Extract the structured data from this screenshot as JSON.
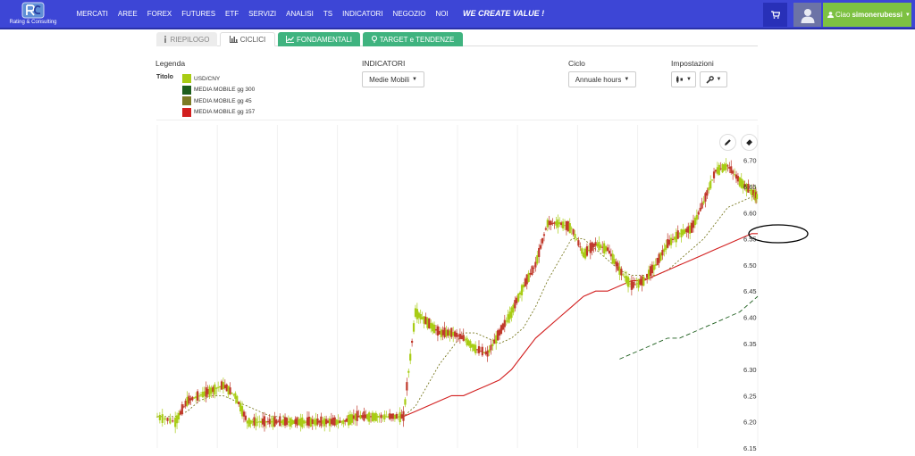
{
  "brand": {
    "name": "Rating & Consulting"
  },
  "nav": {
    "items": [
      "MERCATI",
      "AREE",
      "FOREX",
      "FUTURES",
      "ETF",
      "SERVIZI",
      "ANALISI",
      "TS",
      "INDICATORI",
      "NEGOZIO",
      "NOI"
    ],
    "slogan": "WE CREATE VALUE !"
  },
  "user": {
    "greeting": "Ciao",
    "name": "simonerubessi"
  },
  "tabs": [
    {
      "label": "RIEPILOGO",
      "icon": "info-icon"
    },
    {
      "label": "CICLICI",
      "icon": "bar-chart-icon"
    },
    {
      "label": "FONDAMENTALI",
      "icon": "line-chart-icon"
    },
    {
      "label": "TARGET e TENDENZE",
      "icon": "pin-icon"
    }
  ],
  "legend": {
    "title": "Legenda",
    "subtitle": "Titolo",
    "entries": [
      {
        "label": "USD/CNY",
        "color": "#a8cc14"
      },
      {
        "label": "MEDIA MOBILE gg 300",
        "color": "#1d5e1d"
      },
      {
        "label": "MEDIA MOBILE gg 45",
        "color": "#7b7b24"
      },
      {
        "label": "MEDIA MOBILE gg 157",
        "color": "#d21f1f"
      }
    ]
  },
  "indicatori": {
    "title": "INDICATORI",
    "selected": "Medie Mobili"
  },
  "ciclo": {
    "title": "Ciclo",
    "selected": "Annuale hours"
  },
  "impostazioni": {
    "title": "Impostazioni"
  },
  "colors": {
    "nav_bg": "#3d46d6",
    "accent_green": "#3fb37f",
    "user_green": "#7dc142",
    "candle_up": "#a8cc14",
    "candle_down": "#c0392b",
    "ma_157": "#d21f1f",
    "ma_45": "#7b7b24",
    "ma_300": "#1d5e1d"
  },
  "chart_data": {
    "type": "line",
    "title": "",
    "xlabel": "",
    "ylabel": "",
    "ylim": [
      6.15,
      6.72
    ],
    "y_ticks": [
      6.15,
      6.2,
      6.25,
      6.3,
      6.35,
      6.4,
      6.45,
      6.5,
      6.55,
      6.6,
      6.65,
      6.7
    ],
    "y_tick_labels": [
      "6.15",
      "6.20",
      "6.25",
      "6.30",
      "6.35",
      "6.40",
      "6.45",
      "6.50",
      "6.55",
      "6.60",
      "6.65",
      "6.70"
    ],
    "x": [
      0,
      3,
      5,
      7,
      9,
      11,
      13,
      15,
      17,
      19,
      21,
      23,
      25,
      27,
      29,
      31,
      33,
      35,
      37,
      39,
      41,
      43,
      45,
      47,
      49,
      51,
      53,
      55,
      57,
      59,
      61,
      63,
      65,
      67,
      69,
      71,
      73,
      75,
      77,
      79,
      81,
      83,
      85,
      87,
      89,
      91,
      93,
      95,
      97,
      99,
      100
    ],
    "grid": true,
    "legend_position": "top-left",
    "series": [
      {
        "name": "USD/CNY",
        "type": "candlestick",
        "color": "#a8cc14",
        "values": [
          6.21,
          6.2,
          6.24,
          6.25,
          6.26,
          6.27,
          6.25,
          6.2,
          6.2,
          6.2,
          6.2,
          6.2,
          6.2,
          6.2,
          6.2,
          6.2,
          6.21,
          6.21,
          6.21,
          6.21,
          6.21,
          6.41,
          6.39,
          6.37,
          6.37,
          6.36,
          6.34,
          6.33,
          6.37,
          6.41,
          6.46,
          6.5,
          6.58,
          6.58,
          6.57,
          6.52,
          6.54,
          6.53,
          6.49,
          6.46,
          6.47,
          6.5,
          6.54,
          6.56,
          6.57,
          6.62,
          6.68,
          6.69,
          6.66,
          6.64,
          6.63
        ]
      },
      {
        "name": "MEDIA MOBILE gg 45",
        "type": "line",
        "dashed": true,
        "color": "#7b7b24",
        "values": [
          6.21,
          6.21,
          6.22,
          6.24,
          6.25,
          6.25,
          6.24,
          6.23,
          6.22,
          6.21,
          6.21,
          6.2,
          6.2,
          6.2,
          6.2,
          6.2,
          6.21,
          6.21,
          6.21,
          6.21,
          6.21,
          6.23,
          6.27,
          6.31,
          6.34,
          6.37,
          6.37,
          6.36,
          6.35,
          6.36,
          6.38,
          6.42,
          6.47,
          6.51,
          6.55,
          6.55,
          6.53,
          6.51,
          6.49,
          6.48,
          6.48,
          6.48,
          6.49,
          6.51,
          6.53,
          6.55,
          6.58,
          6.61,
          6.62,
          6.63,
          6.63
        ]
      },
      {
        "name": "MEDIA MOBILE gg 157",
        "type": "line",
        "color": "#d21f1f",
        "values": [
          null,
          null,
          null,
          null,
          null,
          null,
          null,
          null,
          null,
          null,
          null,
          null,
          null,
          null,
          null,
          null,
          null,
          null,
          null,
          null,
          6.21,
          6.22,
          6.23,
          6.24,
          6.25,
          6.25,
          6.26,
          6.27,
          6.28,
          6.3,
          6.33,
          6.36,
          6.38,
          6.4,
          6.42,
          6.44,
          6.45,
          6.45,
          6.46,
          6.47,
          6.47,
          6.48,
          6.49,
          6.5,
          6.51,
          6.52,
          6.53,
          6.54,
          6.55,
          6.56,
          6.56
        ]
      },
      {
        "name": "MEDIA MOBILE gg 300",
        "type": "line",
        "dashed": true,
        "color": "#1d5e1d",
        "values": [
          null,
          null,
          null,
          null,
          null,
          null,
          null,
          null,
          null,
          null,
          null,
          null,
          null,
          null,
          null,
          null,
          null,
          null,
          null,
          null,
          null,
          null,
          null,
          null,
          null,
          null,
          null,
          null,
          null,
          null,
          null,
          null,
          null,
          null,
          null,
          null,
          null,
          null,
          6.32,
          6.33,
          6.34,
          6.35,
          6.36,
          6.36,
          6.37,
          6.38,
          6.39,
          6.4,
          6.41,
          6.43,
          6.44
        ]
      }
    ]
  }
}
